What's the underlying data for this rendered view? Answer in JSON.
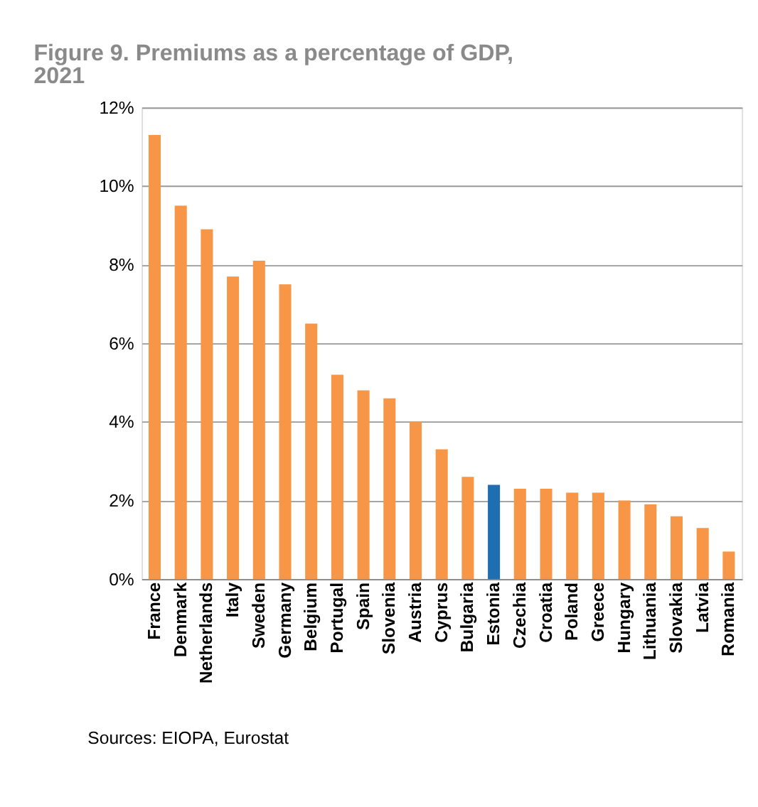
{
  "chart_data": {
    "type": "bar",
    "title": [
      "Figure 9. Premiums as a percentage of GDP,",
      "2021"
    ],
    "categories": [
      "France",
      "Denmark",
      "Netherlands",
      "Italy",
      "Sweden",
      "Germany",
      "Belgium",
      "Portugal",
      "Spain",
      "Slovenia",
      "Austria",
      "Cyprus",
      "Bulgaria",
      "Estonia",
      "Czechia",
      "Croatia",
      "Poland",
      "Greece",
      "Hungary",
      "Lithuania",
      "Slovakia",
      "Latvia",
      "Romania"
    ],
    "values": [
      11.3,
      9.5,
      8.9,
      7.7,
      8.1,
      7.5,
      6.5,
      5.2,
      4.8,
      4.6,
      4.0,
      3.3,
      2.6,
      2.4,
      2.3,
      2.3,
      2.2,
      2.2,
      2.0,
      1.9,
      1.6,
      1.3,
      0.7
    ],
    "colors": [
      "#f79646",
      "#f79646",
      "#f79646",
      "#f79646",
      "#f79646",
      "#f79646",
      "#f79646",
      "#f79646",
      "#f79646",
      "#f79646",
      "#f79646",
      "#f79646",
      "#f79646",
      "#1f6fb0",
      "#f79646",
      "#f79646",
      "#f79646",
      "#f79646",
      "#f79646",
      "#f79646",
      "#f79646",
      "#f79646",
      "#f79646"
    ],
    "ylim": [
      0,
      12
    ],
    "yticks": [
      {
        "value": 0,
        "label": "0%"
      },
      {
        "value": 2,
        "label": "2%"
      },
      {
        "value": 4,
        "label": "4%"
      },
      {
        "value": 6,
        "label": "6%"
      },
      {
        "value": 8,
        "label": "8%"
      },
      {
        "value": 10,
        "label": "10%"
      },
      {
        "value": 12,
        "label": "12%"
      }
    ],
    "grid": "y",
    "annotations": [
      "Sources: EIOPA, Eurostat"
    ]
  }
}
